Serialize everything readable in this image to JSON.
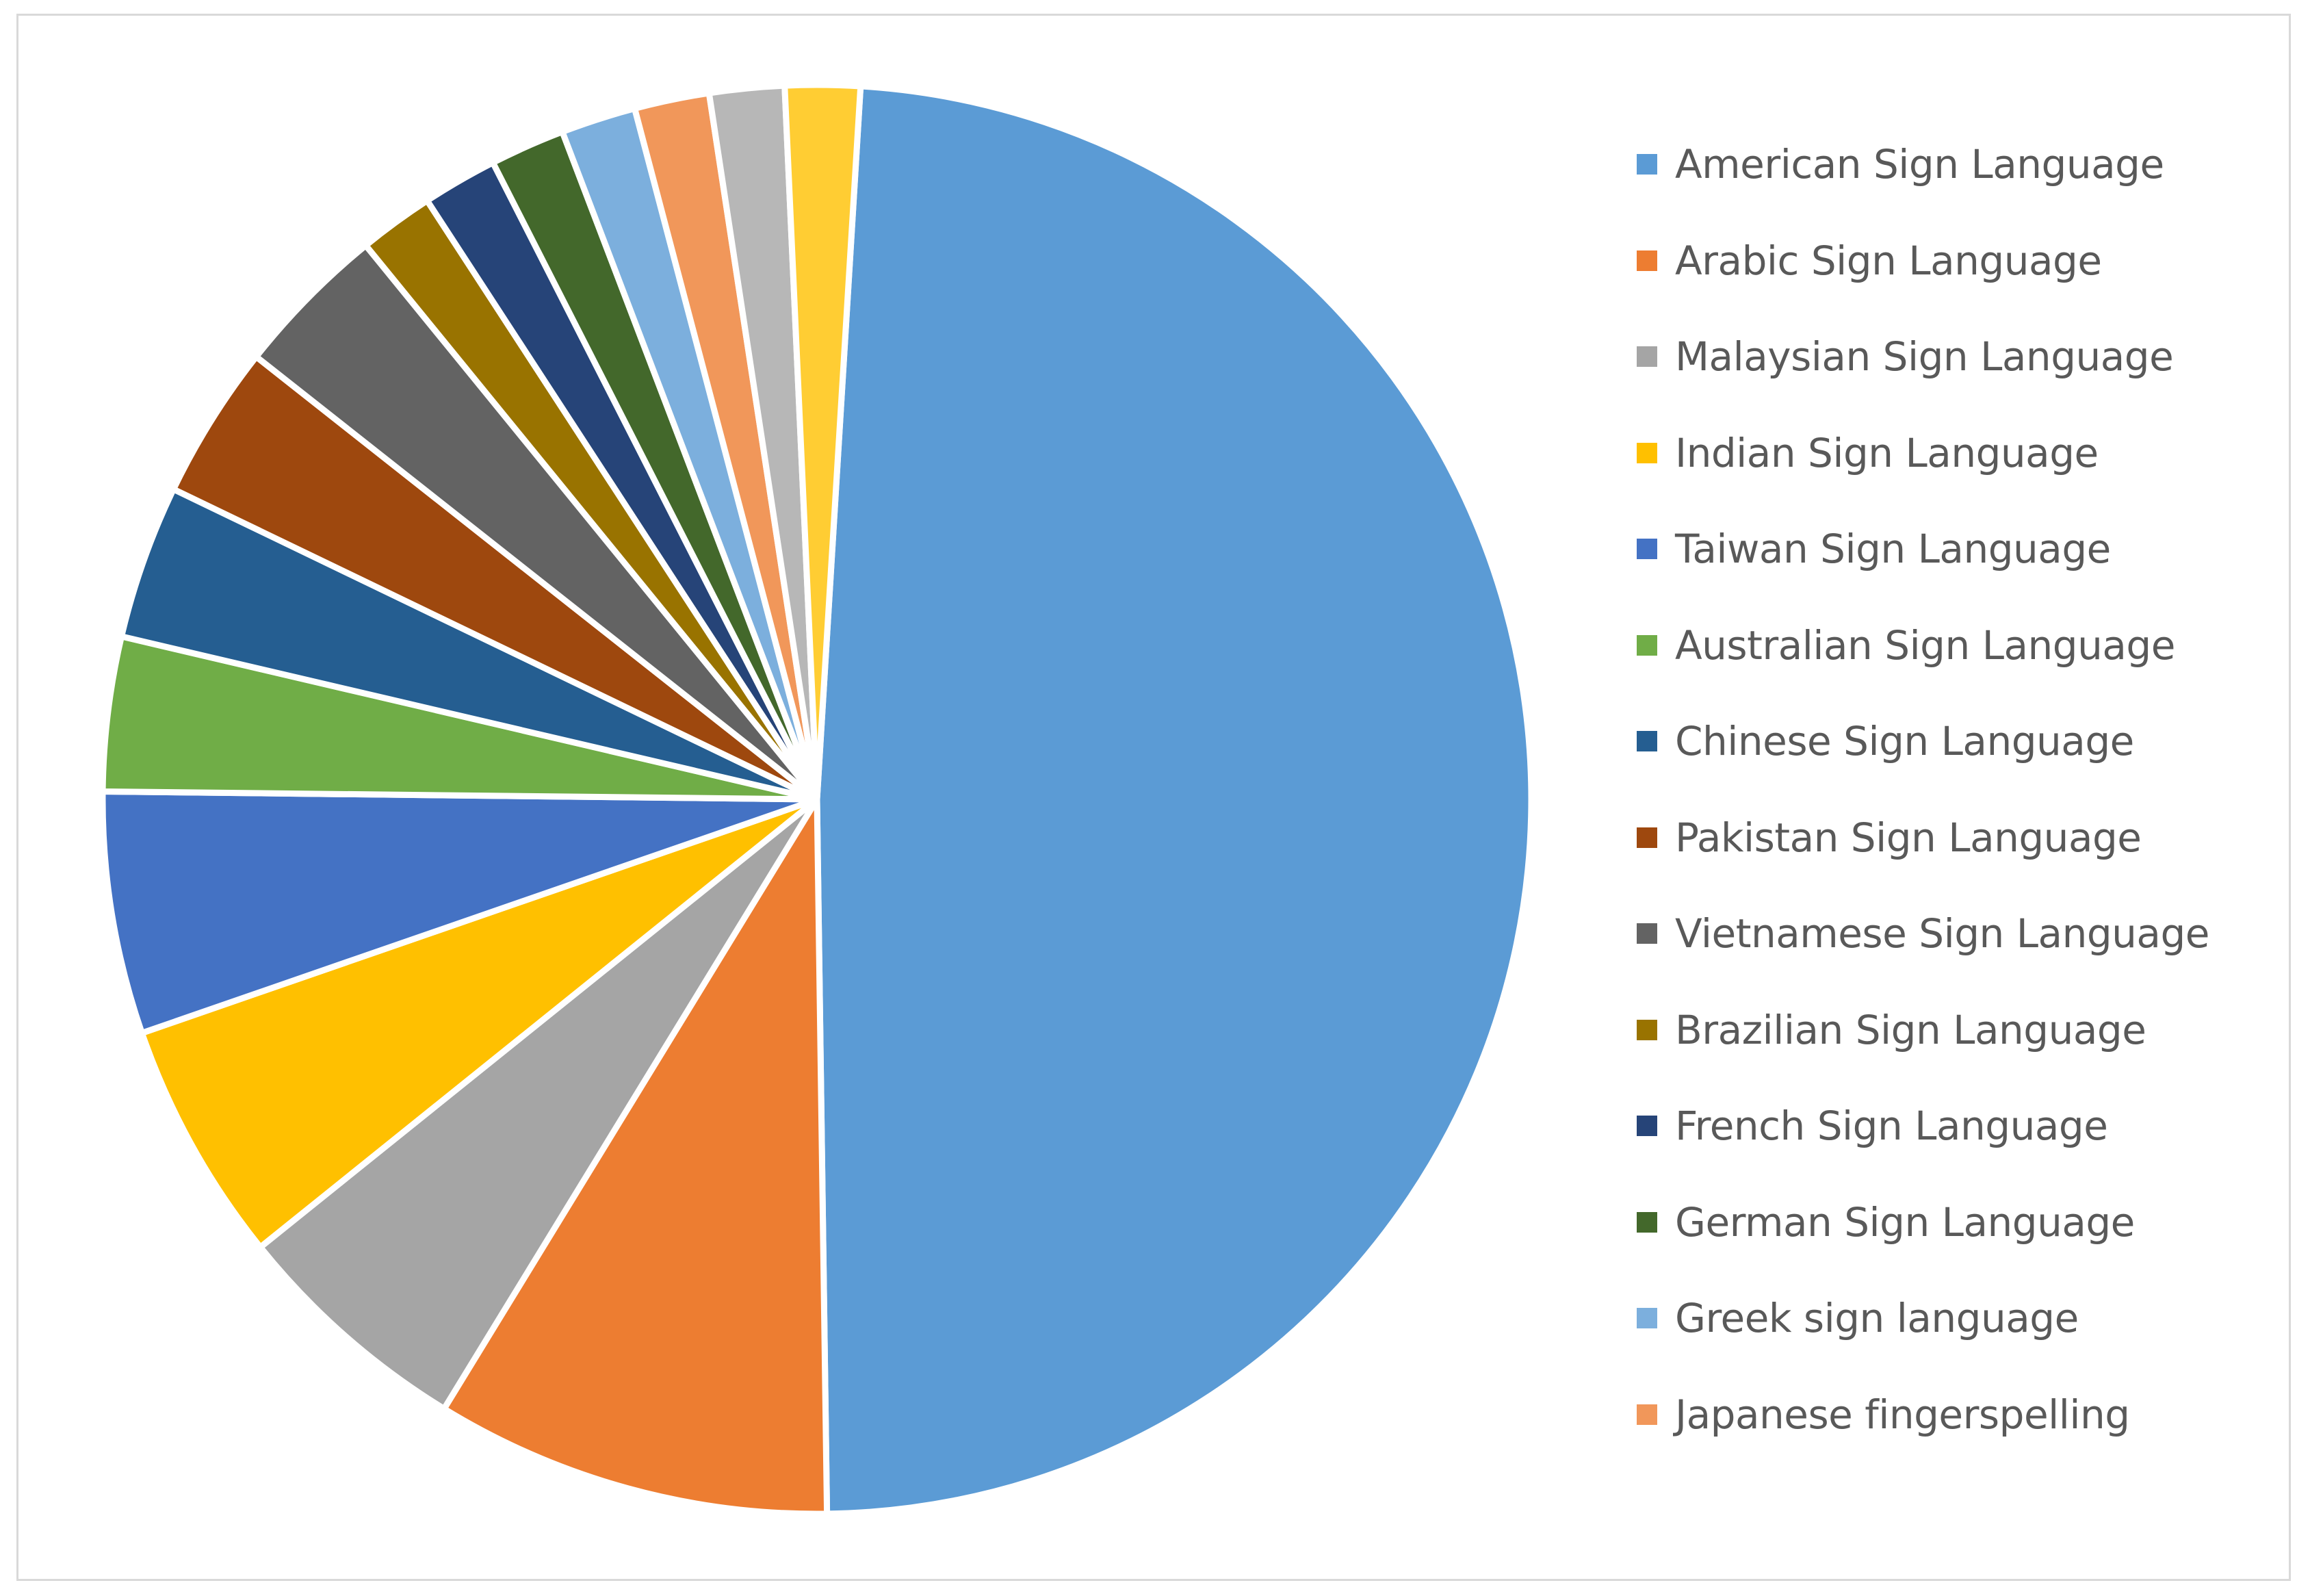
{
  "chart_data": {
    "type": "pie",
    "title": "",
    "legend_position": "right",
    "series": [
      {
        "name": "American Sign Language",
        "value": 49,
        "color": "#5B9BD5"
      },
      {
        "name": "Arabic Sign Language",
        "value": 9,
        "color": "#ED7D31"
      },
      {
        "name": "Malaysian Sign Language",
        "value": 5.5,
        "color": "#A5A5A5"
      },
      {
        "name": "Indian Sign Language",
        "value": 5.5,
        "color": "#FFC000"
      },
      {
        "name": "Taiwan Sign Language",
        "value": 5.5,
        "color": "#4472C4"
      },
      {
        "name": "Australian Sign Language",
        "value": 3.5,
        "color": "#70AD47"
      },
      {
        "name": "Chinese Sign Language",
        "value": 3.5,
        "color": "#255E91"
      },
      {
        "name": "Pakistan Sign Language",
        "value": 3.5,
        "color": "#9E480E"
      },
      {
        "name": "Vietnamese Sign Language",
        "value": 3.5,
        "color": "#636363"
      },
      {
        "name": "Brazilian Sign Language",
        "value": 1.7,
        "color": "#997300"
      },
      {
        "name": "French Sign Language",
        "value": 1.7,
        "color": "#264478"
      },
      {
        "name": "German Sign Language",
        "value": 1.7,
        "color": "#43682B"
      },
      {
        "name": "Greek sign language",
        "value": 1.7,
        "color": "#7CAFDD"
      },
      {
        "name": "Japanese fingerspelling",
        "value": 1.7,
        "color": "#F1975A"
      },
      {
        "name": "",
        "value": 1.7,
        "color": "#B7B7B7"
      },
      {
        "name": "",
        "value": 1.7,
        "color": "#FFCD33"
      }
    ]
  }
}
